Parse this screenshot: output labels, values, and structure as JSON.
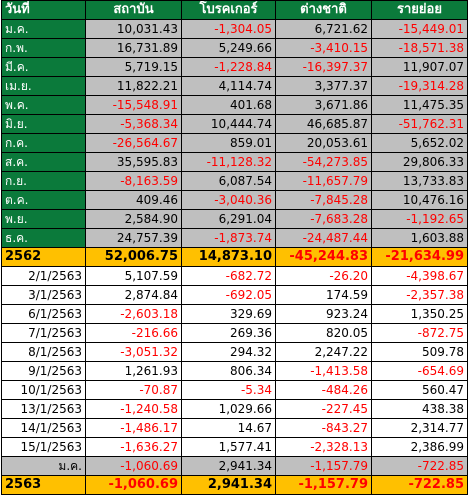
{
  "headers": [
    "วันที่",
    "สถาบัน",
    "โบรคเกอร์",
    "ต่างชาติ",
    "รายย่อย"
  ],
  "months_2562": [
    {
      "label": "ม.ค.",
      "values": [
        "10,031.43",
        "-1,304.05",
        "6,721.62",
        "-15,449.01"
      ]
    },
    {
      "label": "ก.พ.",
      "values": [
        "16,731.89",
        "5,249.66",
        "-3,410.15",
        "-18,571.38"
      ]
    },
    {
      "label": "มี.ค.",
      "values": [
        "5,719.15",
        "-1,228.84",
        "-16,397.37",
        "11,907.07"
      ]
    },
    {
      "label": "เม.ย.",
      "values": [
        "11,822.21",
        "4,114.74",
        "3,377.37",
        "-19,314.28"
      ]
    },
    {
      "label": "พ.ค.",
      "values": [
        "-15,548.91",
        "401.68",
        "3,671.86",
        "11,475.35"
      ]
    },
    {
      "label": "มิ.ย.",
      "values": [
        "-5,368.34",
        "10,444.74",
        "46,685.87",
        "-51,762.31"
      ]
    },
    {
      "label": "ก.ค.",
      "values": [
        "-26,564.67",
        "859.01",
        "20,053.61",
        "5,652.02"
      ]
    },
    {
      "label": "ส.ค.",
      "values": [
        "35,595.83",
        "-11,128.32",
        "-54,273.85",
        "29,806.33"
      ]
    },
    {
      "label": "ก.ย.",
      "values": [
        "-8,163.59",
        "6,087.54",
        "-11,657.79",
        "13,733.83"
      ]
    },
    {
      "label": "ต.ค.",
      "values": [
        "409.46",
        "-3,040.36",
        "-7,845.28",
        "10,476.16"
      ]
    },
    {
      "label": "พ.ย.",
      "values": [
        "2,584.90",
        "6,291.04",
        "-7,683.28",
        "-1,192.65"
      ]
    },
    {
      "label": "ธ.ค.",
      "values": [
        "24,757.39",
        "-1,873.74",
        "-24,487.44",
        "1,603.88"
      ]
    }
  ],
  "total_2562": {
    "label": "2562",
    "values": [
      "52,006.75",
      "14,873.10",
      "-45,244.83",
      "-21,634.99"
    ]
  },
  "days_2563": [
    {
      "label": "2/1/2563",
      "values": [
        "5,107.59",
        "-682.72",
        "-26.20",
        "-4,398.67"
      ]
    },
    {
      "label": "3/1/2563",
      "values": [
        "2,874.84",
        "-692.05",
        "174.59",
        "-2,357.38"
      ]
    },
    {
      "label": "6/1/2563",
      "values": [
        "-2,603.18",
        "329.69",
        "923.24",
        "1,350.25"
      ]
    },
    {
      "label": "7/1/2563",
      "values": [
        "-216.66",
        "269.36",
        "820.05",
        "-872.75"
      ]
    },
    {
      "label": "8/1/2563",
      "values": [
        "-3,051.32",
        "294.32",
        "2,247.22",
        "509.78"
      ]
    },
    {
      "label": "9/1/2563",
      "values": [
        "1,261.93",
        "806.34",
        "-1,413.58",
        "-654.69"
      ]
    },
    {
      "label": "10/1/2563",
      "values": [
        "-70.87",
        "-5.34",
        "-484.26",
        "560.47"
      ]
    },
    {
      "label": "13/1/2563",
      "values": [
        "-1,240.58",
        "1,029.66",
        "-227.45",
        "438.38"
      ]
    },
    {
      "label": "14/1/2563",
      "values": [
        "-1,486.17",
        "14.67",
        "-843.27",
        "2,314.77"
      ]
    },
    {
      "label": "15/1/2563",
      "values": [
        "-1,636.27",
        "1,577.41",
        "-2,328.13",
        "2,386.99"
      ]
    }
  ],
  "month_2563": {
    "label": "ม.ค.",
    "values": [
      "-1,060.69",
      "2,941.34",
      "-1,157.79",
      "-722.85"
    ]
  },
  "total_2563": {
    "label": "2563",
    "values": [
      "-1,060.69",
      "2,941.34",
      "-1,157.79",
      "-722.85"
    ]
  },
  "colors": {
    "header_green": "#0b7a3b",
    "gray": "#bfbfbf",
    "total_yellow": "#ffc000",
    "negative_red": "#ff0000"
  }
}
